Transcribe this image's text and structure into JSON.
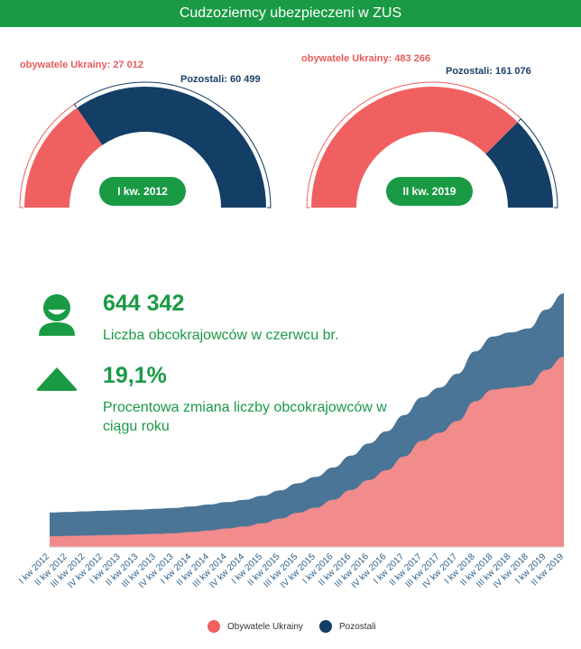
{
  "header": {
    "title": "Cudzoziemcy ubezpieczeni w ZUS"
  },
  "colors": {
    "green": "#1a9a44",
    "ukraine": "#f06060",
    "others": "#133e66",
    "ukraine_area": "#f28b8b",
    "others_area": "#4a7596"
  },
  "gauges": [
    {
      "period": "I kw. 2012",
      "ukraine_label": "obywatele Ukrainy: 27 012",
      "others_label": "Pozostali: 60 499",
      "ukraine": 27012,
      "others": 60499
    },
    {
      "period": "II kw. 2019",
      "ukraine_label": "obywatele Ukrainy: 483 266",
      "others_label": "Pozostali: 161 076",
      "ukraine": 483266,
      "others": 161076
    }
  ],
  "stats": [
    {
      "icon": "person-icon",
      "value": "644 342",
      "desc": "Liczba obcokrajowców w czerwcu br."
    },
    {
      "icon": "triangle-up-icon",
      "value": "19,1%",
      "desc": "Procentowa zmiana liczby obcokrajowców w ciągu roku"
    }
  ],
  "chart_data": {
    "type": "area",
    "stacked": true,
    "title": "",
    "xlabel": "",
    "ylabel": "",
    "x": [
      "I kw 2012",
      "II kw 2012",
      "III kw 2012",
      "IV kw 2012",
      "I kw 2013",
      "II kw 2013",
      "III kw 2013",
      "IV kw 2013",
      "I kw 2014",
      "II kw 2014",
      "III kw 2014",
      "IV kw 2014",
      "I kw 2015",
      "II kw 2015",
      "III kw 2015",
      "IV kw 2015",
      "I kw 2016",
      "II kw 2016",
      "III kw 2016",
      "IV kw 2016",
      "I kw 2017",
      "II kw 2017",
      "III kw 2017",
      "IV kw 2017",
      "I kw 2018",
      "II kw 2018",
      "III kw 2018",
      "IV kw 2018",
      "I kw 2019",
      "II kw 2019"
    ],
    "ylim": [
      0,
      644342
    ],
    "series": [
      {
        "name": "Obywatele Ukrainy",
        "values": [
          27012,
          28000,
          29000,
          30000,
          31000,
          32000,
          33500,
          35000,
          38000,
          42000,
          47000,
          52000,
          60000,
          72000,
          87000,
          100000,
          120000,
          145000,
          170000,
          195000,
          230000,
          270000,
          290000,
          320000,
          370000,
          400000,
          405000,
          410000,
          450000,
          483266
        ]
      },
      {
        "name": "Pozostali",
        "values": [
          60499,
          61000,
          61500,
          62000,
          62500,
          63000,
          63500,
          64000,
          65000,
          66000,
          67000,
          68000,
          70000,
          72000,
          75000,
          78000,
          82000,
          87000,
          93000,
          99000,
          105000,
          110000,
          115000,
          120000,
          127000,
          135000,
          140000,
          145000,
          153000,
          161076
        ]
      }
    ],
    "legend": {
      "position": "bottom"
    }
  }
}
